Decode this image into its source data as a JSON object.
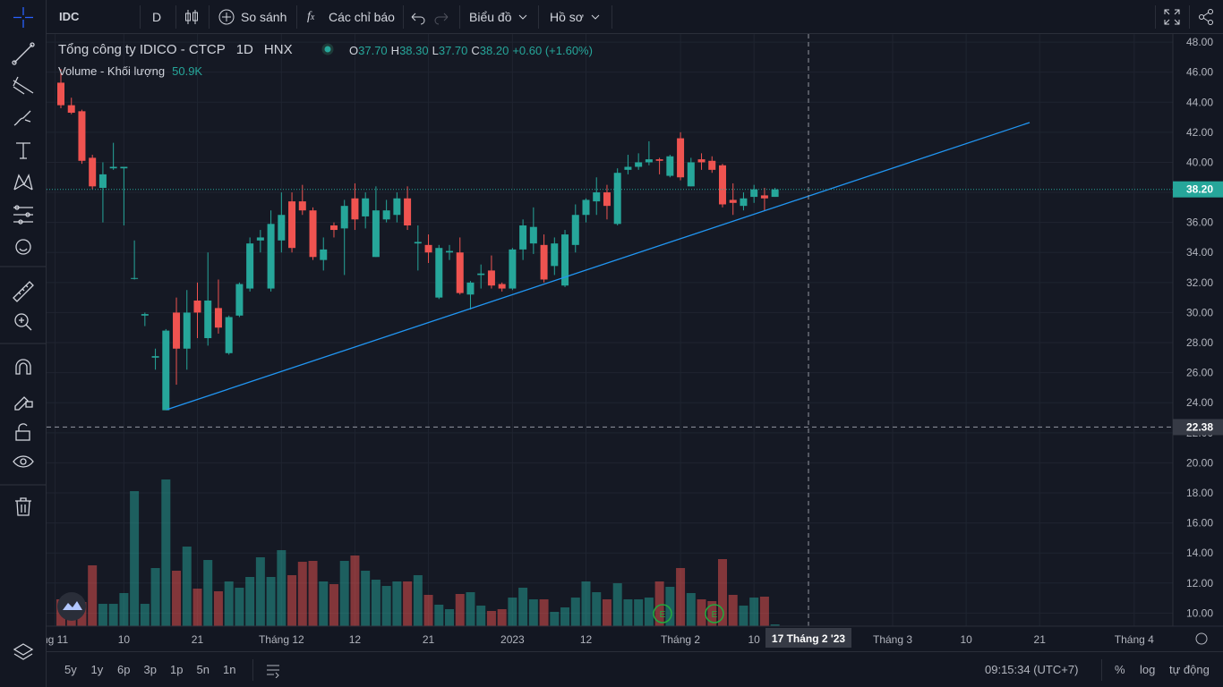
{
  "toolbar": {
    "symbol": "IDC",
    "interval": "D",
    "compare": "So sánh",
    "indicators": "Các chỉ báo",
    "chart": "Biểu đồ",
    "profile": "Hồ sơ"
  },
  "chart_data": {
    "type": "candlestick",
    "title": "Tổng công ty IDICO - CTCP",
    "interval": "1D",
    "exchange": "HNX",
    "ohlc_legend": [
      {
        "key": "O",
        "value": "37.70"
      },
      {
        "key": "H",
        "value": "38.30"
      },
      {
        "key": "L",
        "value": "37.70"
      },
      {
        "key": "C",
        "value": "38.20"
      }
    ],
    "change": "+0.60 (+1.60%)",
    "volume_title": "Volume - Khối lượng",
    "volume_value": "50.9K",
    "open": [
      45.3,
      43.8,
      43.4,
      40.3,
      38.3,
      39.6,
      39.6,
      32.3,
      29.8,
      27.0,
      23.5,
      30.0,
      27.6,
      30.8,
      28.3,
      30.3,
      27.3,
      29.8,
      31.6,
      34.8,
      31.6,
      34.8,
      37.4,
      37.4,
      36.8,
      33.5,
      35.8,
      35.6,
      37.6,
      36.4,
      33.7,
      36.2,
      36.5,
      37.6,
      34.6,
      34.5,
      31.0,
      34.0,
      34.0,
      31.2,
      32.5,
      32.8,
      31.9,
      31.6,
      34.2,
      34.6,
      34.5,
      33.1,
      31.8,
      34.5,
      36.5,
      37.4,
      38.0,
      35.9,
      39.5,
      39.7,
      40.0,
      40.2,
      39.1,
      41.6,
      38.4,
      40.2,
      40.1,
      39.8,
      37.5,
      37.1,
      37.7,
      37.8,
      37.7
    ],
    "high": [
      46.2,
      44.3,
      43.5,
      40.5,
      40.0,
      41.3,
      39.7,
      34.8,
      30.0,
      27.6,
      28.9,
      31.0,
      31.5,
      32.0,
      34.0,
      32.2,
      29.8,
      32.0,
      35.0,
      35.5,
      36.8,
      38.0,
      38.0,
      38.5,
      37.0,
      35.0,
      36.0,
      37.5,
      38.6,
      38.0,
      38.4,
      37.5,
      38.0,
      38.4,
      35.8,
      35.2,
      34.5,
      34.5,
      35.0,
      32.1,
      33.2,
      33.8,
      32.0,
      34.3,
      36.2,
      37.0,
      35.2,
      35.0,
      35.5,
      37.2,
      37.6,
      39.0,
      38.5,
      39.6,
      40.5,
      40.6,
      41.4,
      40.3,
      40.5,
      42.0,
      40.3,
      40.6,
      40.4,
      39.9,
      38.6,
      38.0,
      38.5,
      38.3,
      38.3
    ],
    "low": [
      43.6,
      43.2,
      39.9,
      38.2,
      36.0,
      39.5,
      35.8,
      32.2,
      29.1,
      26.2,
      23.5,
      25.2,
      26.2,
      28.3,
      27.8,
      28.6,
      27.2,
      29.7,
      31.4,
      34.0,
      31.4,
      34.0,
      34.0,
      36.5,
      33.5,
      32.8,
      35.0,
      32.5,
      35.5,
      35.6,
      33.7,
      36.0,
      36.0,
      35.5,
      32.8,
      33.3,
      30.9,
      33.5,
      31.2,
      30.2,
      31.6,
      31.6,
      31.4,
      31.5,
      33.5,
      33.9,
      32.0,
      32.5,
      31.7,
      34.0,
      36.0,
      36.5,
      36.2,
      35.8,
      39.2,
      39.5,
      39.8,
      39.2,
      39.0,
      38.8,
      38.4,
      39.5,
      39.3,
      37.0,
      36.5,
      36.8,
      37.3,
      36.8,
      37.7
    ],
    "close": [
      43.8,
      43.3,
      40.1,
      38.4,
      39.2,
      39.7,
      39.7,
      32.3,
      29.9,
      27.1,
      28.8,
      27.6,
      30.0,
      30.0,
      30.8,
      29.0,
      29.7,
      31.9,
      34.6,
      35.0,
      35.9,
      36.5,
      34.3,
      36.8,
      33.7,
      34.2,
      35.5,
      37.1,
      36.2,
      37.6,
      36.8,
      36.8,
      37.6,
      35.8,
      34.7,
      34.0,
      34.3,
      34.1,
      31.3,
      32.0,
      32.6,
      31.8,
      31.6,
      34.2,
      35.8,
      35.7,
      32.2,
      34.6,
      35.2,
      36.5,
      37.5,
      38.0,
      37.1,
      39.3,
      39.7,
      40.0,
      40.2,
      40.1,
      40.4,
      39.0,
      40.0,
      40.0,
      39.5,
      37.2,
      37.3,
      37.6,
      38.2,
      37.6,
      38.2
    ],
    "volume": [
      764,
      713,
      687,
      1731,
      636,
      636,
      942,
      3843,
      636,
      1654,
      4174,
      1578,
      2265,
      1069,
      1883,
      993,
      1273,
      1094,
      1400,
      1960,
      1400,
      2163,
      1451,
      1832,
      1858,
      1273,
      1196,
      1858,
      2011,
      1578,
      1323,
      1145,
      1273,
      1273,
      1451,
      891,
      611,
      484,
      916,
      967,
      585,
      433,
      484,
      814,
      1094,
      764,
      764,
      407,
      534,
      814,
      1273,
      967,
      764,
      1222,
      764,
      764,
      814,
      1273,
      1120,
      1654,
      942,
      764,
      713,
      1909,
      891,
      585,
      814,
      840,
      50.9
    ],
    "up_color": "#26a69a",
    "down_color": "#ef5350",
    "ylim": [
      9.13,
      48.54
    ],
    "yticks": [
      {
        "value": 10,
        "label": "10.00"
      },
      {
        "value": 12,
        "label": "12.00"
      },
      {
        "value": 14,
        "label": "14.00"
      },
      {
        "value": 16,
        "label": "16.00"
      },
      {
        "value": 18,
        "label": "18.00"
      },
      {
        "value": 20,
        "label": "20.00"
      },
      {
        "value": 22,
        "label": "22.00"
      },
      {
        "value": 24,
        "label": "24.00"
      },
      {
        "value": 26,
        "label": "26.00"
      },
      {
        "value": 28,
        "label": "28.00"
      },
      {
        "value": 30,
        "label": "30.00"
      },
      {
        "value": 32,
        "label": "32.00"
      },
      {
        "value": 34,
        "label": "34.00"
      },
      {
        "value": 36,
        "label": "36.00"
      },
      {
        "value": 38,
        "label": "38.00"
      },
      {
        "value": 40,
        "label": "40.00"
      },
      {
        "value": 42,
        "label": "42.00"
      },
      {
        "value": 44,
        "label": "44.00"
      },
      {
        "value": 46,
        "label": "46.00"
      },
      {
        "value": 48,
        "label": "48.00"
      }
    ],
    "x_labels": [
      "ng 11",
      "10",
      "21",
      "Tháng 12",
      "12",
      "21",
      "2023",
      "12",
      "Tháng 2",
      "10",
      "Tháng 3",
      "10",
      "21",
      "Tháng 4"
    ],
    "last_price": {
      "value": 38.2,
      "label": "38.20"
    },
    "crosshair": {
      "price": {
        "value": 22.38,
        "label": "22.38"
      },
      "date": "17 Tháng 2 '23"
    },
    "grid": true
  },
  "footer": {
    "ranges": [
      "5y",
      "1y",
      "6p",
      "3p",
      "1p",
      "5n",
      "1n"
    ],
    "time": "09:15:34 (UTC+7)",
    "percent": "%",
    "log": "log",
    "auto": "tự động"
  }
}
